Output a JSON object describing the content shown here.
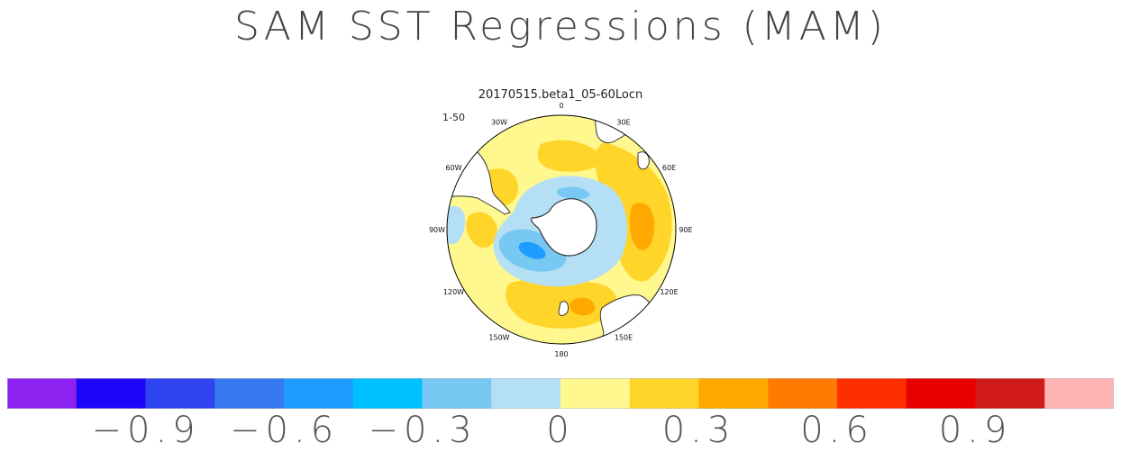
{
  "title": "SAM SST Regressions (MAM)",
  "subtitle": "20170515.beta1_05-60Locn",
  "panel_label": "1-50",
  "longitude_labels": [
    "0",
    "30E",
    "60E",
    "90E",
    "120E",
    "150E",
    "180",
    "150W",
    "120W",
    "90W",
    "60W",
    "30W"
  ],
  "colorbar": {
    "colors": [
      "#8b22f0",
      "#1f04fa",
      "#2f44f0",
      "#3679ee",
      "#1e9cff",
      "#00c1ff",
      "#78c8f4",
      "#b5dff4",
      "#fff88f",
      "#ffd52a",
      "#ffa800",
      "#ff7a00",
      "#ff2e00",
      "#e80000",
      "#d01a1a",
      "#ffb3b3"
    ],
    "labels": [
      {
        "text": "−0.9",
        "boundary": 2
      },
      {
        "text": "−0.6",
        "boundary": 4
      },
      {
        "text": "−0.3",
        "boundary": 6
      },
      {
        "text": "0",
        "boundary": 8
      },
      {
        "text": "0.3",
        "boundary": 10
      },
      {
        "text": "0.6",
        "boundary": 12
      },
      {
        "text": "0.9",
        "boundary": 14
      }
    ]
  },
  "map_colors": {
    "ocean_base": "#fff88f",
    "positive_mid": "#ffd52a",
    "positive_strong": "#ffa800",
    "negative_weak": "#b5dff4",
    "negative_mid": "#78c8f4",
    "negative_strong": "#1e9cff",
    "land": "#ffffff",
    "outline": "#333333"
  }
}
